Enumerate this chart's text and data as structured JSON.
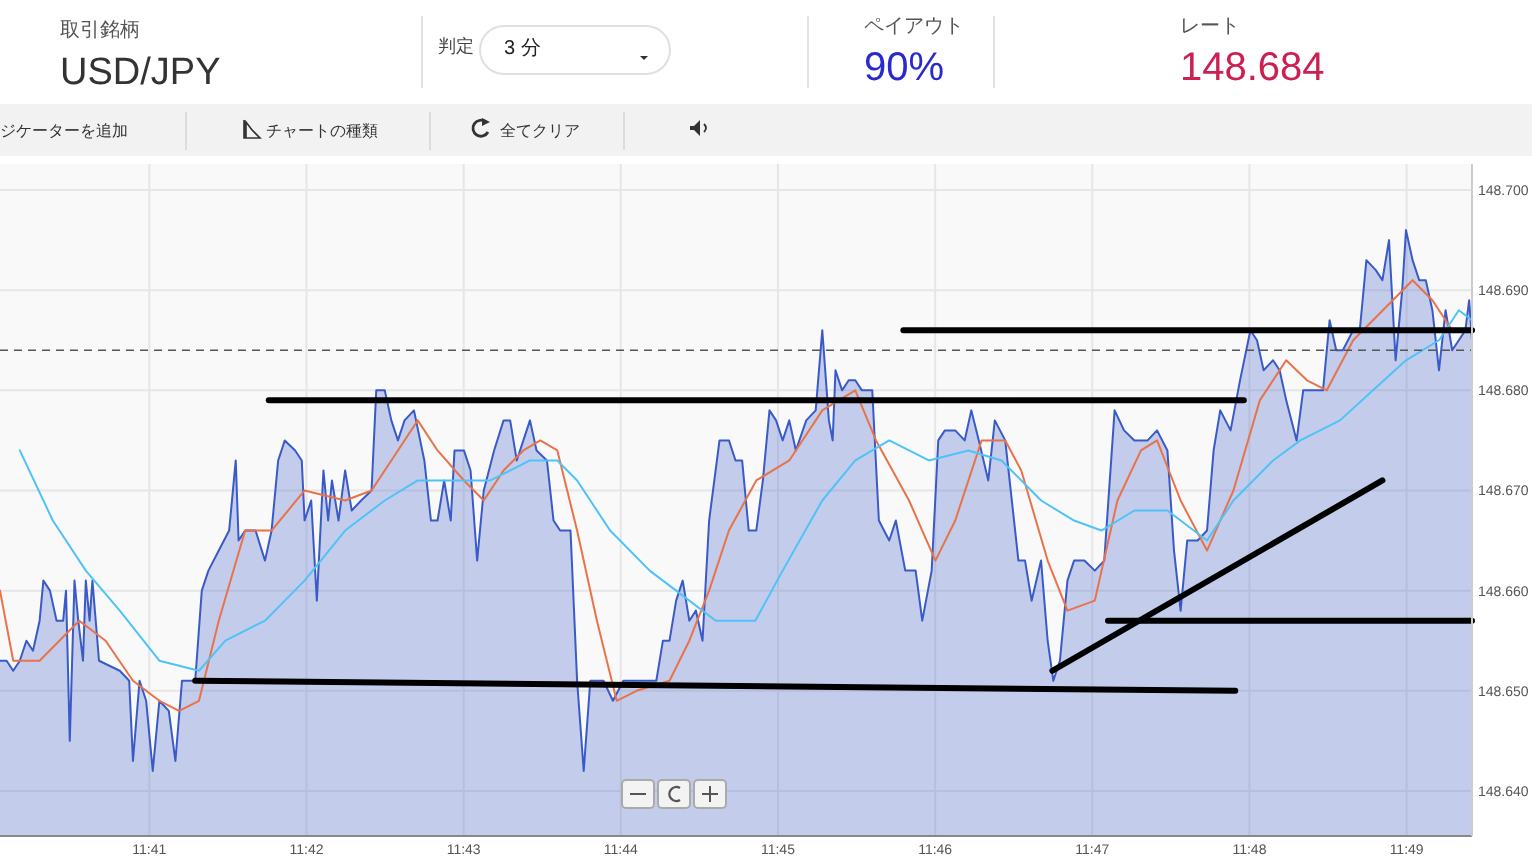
{
  "chart_data": {
    "type": "area",
    "title": "USD/JPY",
    "annotations": [
      "取引銘柄",
      "判定",
      "3 分",
      "ペイアウト",
      "90%",
      "レート",
      "148.684",
      "ジケーターを追加",
      "チャートの種類",
      "全てクリア"
    ],
    "xlim": [
      11.6675,
      11.8236
    ],
    "ylim": [
      148.6355,
      148.7026
    ],
    "xticks": [
      {
        "value": 11.68333,
        "label": "11:41"
      },
      {
        "value": 11.7,
        "label": "11:42"
      },
      {
        "value": 11.71667,
        "label": "11:43"
      },
      {
        "value": 11.73333,
        "label": "11:44"
      },
      {
        "value": 11.75,
        "label": "11:45"
      },
      {
        "value": 11.76667,
        "label": "11:46"
      },
      {
        "value": 11.78333,
        "label": "11:47"
      },
      {
        "value": 11.8,
        "label": "11:48"
      },
      {
        "value": 11.81667,
        "label": "11:49"
      }
    ],
    "yticks": [
      {
        "value": 148.64,
        "label": "148.640"
      },
      {
        "value": 148.65,
        "label": "148.650"
      },
      {
        "value": 148.66,
        "label": "148.660"
      },
      {
        "value": 148.67,
        "label": "148.670"
      },
      {
        "value": 148.68,
        "label": "148.680"
      },
      {
        "value": 148.69,
        "label": "148.690"
      },
      {
        "value": 148.7,
        "label": "148.700"
      }
    ],
    "grid": true,
    "ref_lines": [
      {
        "axis": "y",
        "value": 148.684,
        "color": "#555555",
        "line_style": "dashed"
      }
    ],
    "series": [
      {
        "color": "#3a5bc7",
        "x": [
          11.6675,
          11.6682,
          11.6689,
          11.6696,
          11.6703,
          11.671,
          11.6717,
          11.6721,
          11.6728,
          11.6735,
          11.6742,
          11.6745,
          11.6749,
          11.6754,
          11.6758,
          11.6763,
          11.6766,
          11.677,
          11.6773,
          11.678,
          11.6802,
          11.6812,
          11.6816,
          11.6823,
          11.683,
          11.6837,
          11.6844,
          11.6854,
          11.6861,
          11.6868,
          11.6882,
          11.6889,
          11.6896,
          11.6907,
          11.6918,
          11.6925,
          11.6928,
          11.6935,
          11.6946,
          11.6956,
          11.6963,
          11.697,
          11.6977,
          11.6988,
          11.6995,
          11.6998,
          11.7005,
          11.7011,
          11.7018,
          11.7023,
          11.7027,
          11.7034,
          11.7041,
          11.7048,
          11.7058,
          11.7069,
          11.7074,
          11.7083,
          11.709,
          11.7097,
          11.7104,
          11.7114,
          11.7125,
          11.7132,
          11.7139,
          11.7146,
          11.7153,
          11.7157,
          11.7167,
          11.7174,
          11.7181,
          11.7188,
          11.7199,
          11.7209,
          11.7216,
          11.7223,
          11.723,
          11.7237,
          11.7244,
          11.7255,
          11.7262,
          11.7269,
          11.728,
          11.7287,
          11.7294,
          11.7301,
          11.7315,
          11.7325,
          11.7336,
          11.735,
          11.7371,
          11.7378,
          11.7385,
          11.7392,
          11.7399,
          11.7406,
          11.7413,
          11.742,
          11.7427,
          11.7438,
          11.7448,
          11.7455,
          11.7462,
          11.7469,
          11.7477,
          11.7484,
          11.7491,
          11.7498,
          11.7505,
          11.7512,
          11.7519,
          11.753,
          11.754,
          11.7547,
          11.7554,
          11.7558,
          11.7561,
          11.7568,
          11.7575,
          11.7582,
          11.7589,
          11.76,
          11.7607,
          11.7618,
          11.7625,
          11.7635,
          11.7646,
          11.7653,
          11.7663,
          11.767,
          11.7677,
          11.7688,
          11.7698,
          11.7705,
          11.7713,
          11.7723,
          11.773,
          11.7741,
          11.7755,
          11.7762,
          11.7769,
          11.7779,
          11.7786,
          11.7792,
          11.7799,
          11.7807,
          11.7814,
          11.7825,
          11.7836,
          11.7846,
          11.7857,
          11.7867,
          11.7878,
          11.7892,
          11.7902,
          11.7913,
          11.792,
          11.7927,
          11.7934,
          11.7945,
          11.7955,
          11.7962,
          11.7969,
          11.798,
          11.799,
          11.8001,
          11.8008,
          11.8015,
          11.8025,
          11.8032,
          11.8039,
          11.805,
          11.8057,
          11.8068,
          11.8078,
          11.8085,
          11.8092,
          11.8099,
          11.811,
          11.8117,
          11.8124,
          11.8134,
          11.8141,
          11.8148,
          11.8155,
          11.8162,
          11.8166,
          11.8173,
          11.818,
          11.8187,
          11.8194,
          11.8201,
          11.8208,
          11.8215,
          11.8222,
          11.8229,
          11.8233,
          11.8236
        ],
        "values": [
          148.653,
          148.653,
          148.652,
          148.653,
          148.655,
          148.654,
          148.657,
          148.661,
          148.66,
          148.657,
          148.657,
          148.66,
          148.645,
          148.661,
          148.657,
          148.653,
          148.661,
          148.657,
          148.661,
          148.653,
          148.652,
          148.651,
          148.643,
          148.651,
          148.649,
          148.642,
          148.649,
          148.648,
          148.643,
          148.651,
          148.651,
          148.66,
          148.662,
          148.664,
          148.666,
          148.673,
          148.665,
          148.666,
          148.666,
          148.663,
          148.666,
          148.673,
          148.675,
          148.674,
          148.673,
          148.667,
          148.669,
          148.659,
          148.672,
          148.667,
          148.671,
          148.667,
          148.672,
          148.668,
          148.669,
          148.67,
          148.68,
          148.68,
          148.677,
          148.675,
          148.677,
          148.678,
          148.673,
          148.667,
          148.667,
          148.671,
          148.667,
          148.674,
          148.674,
          148.672,
          148.663,
          148.67,
          148.674,
          148.677,
          148.677,
          148.673,
          148.675,
          148.677,
          148.674,
          148.673,
          148.667,
          148.666,
          148.666,
          148.651,
          148.642,
          148.651,
          148.651,
          148.649,
          148.651,
          148.651,
          148.651,
          148.655,
          148.655,
          148.659,
          148.661,
          148.657,
          148.658,
          148.655,
          148.667,
          148.675,
          148.675,
          148.673,
          148.673,
          148.666,
          148.666,
          148.671,
          148.678,
          148.677,
          148.675,
          148.677,
          148.674,
          148.677,
          148.678,
          148.686,
          148.677,
          148.675,
          148.682,
          148.68,
          148.681,
          148.681,
          148.68,
          148.68,
          148.667,
          148.665,
          148.667,
          148.662,
          148.662,
          148.657,
          148.662,
          148.675,
          148.676,
          148.676,
          148.675,
          148.678,
          148.675,
          148.671,
          148.677,
          148.675,
          148.663,
          148.663,
          148.659,
          148.663,
          148.655,
          148.651,
          148.653,
          148.661,
          148.663,
          148.663,
          148.662,
          148.663,
          148.678,
          148.676,
          148.675,
          148.675,
          148.676,
          148.674,
          148.664,
          148.658,
          148.665,
          148.665,
          148.666,
          148.674,
          148.678,
          148.676,
          148.681,
          148.686,
          148.685,
          148.682,
          148.683,
          148.682,
          148.679,
          148.675,
          148.68,
          148.68,
          148.68,
          148.687,
          148.684,
          148.684,
          148.686,
          148.686,
          148.693,
          148.692,
          148.691,
          148.695,
          148.683,
          148.69,
          148.696,
          148.693,
          148.691,
          148.691,
          148.688,
          148.682,
          148.688,
          148.684,
          148.685,
          148.686,
          148.689,
          148.685
        ]
      },
      {
        "type": "line",
        "color": "#e8734a",
        "x": [
          11.6675,
          11.6689,
          11.6717,
          11.6759,
          11.6787,
          11.6816,
          11.6844,
          11.6865,
          11.6886,
          11.6907,
          11.6935,
          11.6963,
          11.6998,
          11.7041,
          11.7069,
          11.7097,
          11.7118,
          11.7139,
          11.7167,
          11.7188,
          11.7209,
          11.723,
          11.7248,
          11.7266,
          11.7287,
          11.7308,
          11.7329,
          11.735,
          11.7385,
          11.7406,
          11.7427,
          11.7448,
          11.7477,
          11.7512,
          11.7547,
          11.7582,
          11.7604,
          11.7639,
          11.7667,
          11.7688,
          11.7716,
          11.7741,
          11.7758,
          11.7786,
          11.7807,
          11.7836,
          11.786,
          11.7885,
          11.7902,
          11.7927,
          11.7955,
          11.7983,
          11.8011,
          11.8039,
          11.8061,
          11.8082,
          11.811,
          11.8152,
          11.8173,
          11.8194,
          11.8215,
          11.8236
        ],
        "values": [
          148.66,
          148.653,
          148.653,
          148.657,
          148.655,
          148.651,
          148.649,
          148.648,
          148.649,
          148.657,
          148.666,
          148.666,
          148.67,
          148.669,
          148.67,
          148.674,
          148.677,
          148.674,
          148.671,
          148.669,
          148.672,
          148.674,
          148.675,
          148.674,
          148.666,
          148.657,
          148.649,
          148.65,
          148.651,
          148.655,
          148.66,
          148.666,
          148.671,
          148.673,
          148.678,
          148.68,
          148.675,
          148.669,
          148.663,
          148.667,
          148.675,
          148.675,
          148.672,
          148.663,
          148.658,
          148.659,
          148.669,
          148.674,
          148.675,
          148.669,
          148.664,
          148.67,
          148.679,
          148.683,
          148.681,
          148.68,
          148.685,
          148.689,
          148.691,
          148.689,
          148.686,
          148.686
        ]
      },
      {
        "type": "line",
        "color": "#4fc3f7",
        "x": [
          11.6696,
          11.6731,
          11.6766,
          11.6802,
          11.6844,
          11.6886,
          11.6914,
          11.6956,
          11.6998,
          11.7041,
          11.7083,
          11.7118,
          11.716,
          11.7195,
          11.7237,
          11.7266,
          11.7287,
          11.7322,
          11.7364,
          11.7406,
          11.7434,
          11.7476,
          11.7505,
          11.7547,
          11.7582,
          11.7618,
          11.766,
          11.7702,
          11.7737,
          11.7779,
          11.7814,
          11.7843,
          11.7878,
          11.7913,
          11.7941,
          11.7955,
          11.7983,
          11.8025,
          11.8054,
          11.8096,
          11.8131,
          11.8166,
          11.8201,
          11.8222,
          11.8236
        ],
        "values": [
          148.674,
          148.667,
          148.662,
          148.658,
          148.653,
          148.652,
          148.655,
          148.657,
          148.661,
          148.666,
          148.669,
          148.671,
          148.671,
          148.671,
          148.673,
          148.673,
          148.671,
          148.666,
          148.662,
          148.659,
          148.657,
          148.657,
          148.662,
          148.669,
          148.673,
          148.675,
          148.673,
          148.674,
          148.673,
          148.669,
          148.667,
          148.666,
          148.668,
          148.668,
          148.666,
          148.665,
          148.669,
          148.673,
          148.675,
          148.677,
          148.68,
          148.683,
          148.685,
          148.688,
          148.687
        ]
      },
      {
        "type": "line",
        "color": "#000000",
        "x": [
          11.696,
          11.7994
        ],
        "values": [
          148.679,
          148.679
        ]
      },
      {
        "type": "line",
        "color": "#000000",
        "x": [
          11.6882,
          11.7985
        ],
        "values": [
          148.651,
          148.65
        ]
      },
      {
        "type": "line",
        "color": "#000000",
        "x": [
          11.7633,
          11.8236
        ],
        "values": [
          148.686,
          148.686
        ]
      },
      {
        "type": "line",
        "color": "#000000",
        "x": [
          11.785,
          11.8236
        ],
        "values": [
          148.657,
          148.657
        ]
      },
      {
        "type": "line",
        "color": "#000000",
        "x": [
          11.7791,
          11.8141
        ],
        "values": [
          148.652,
          148.671
        ]
      }
    ]
  }
}
